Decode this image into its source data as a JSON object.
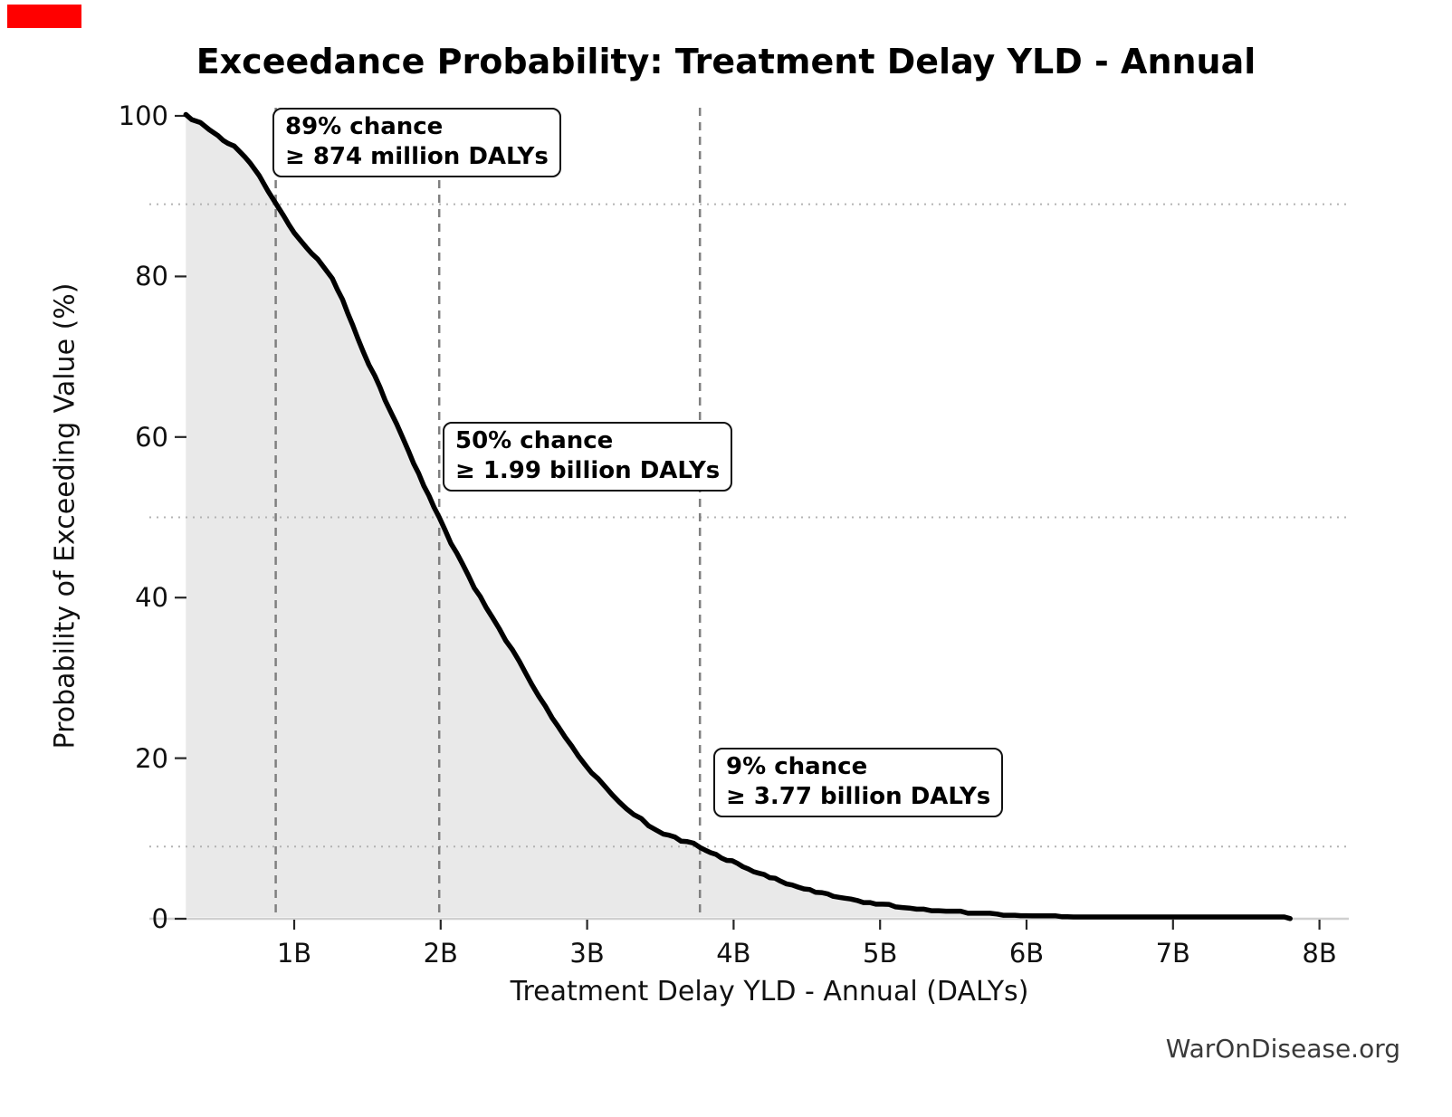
{
  "page": {
    "background": "#ffffff"
  },
  "red_marker": {
    "color": "#ff0000"
  },
  "chart_data": {
    "type": "area",
    "title": "Exceedance Probability: Treatment Delay YLD - Annual",
    "xlabel": "Treatment Delay YLD - Annual (DALYs)",
    "ylabel": "Probability of Exceeding Value (%)",
    "xlim_billions": [
      0,
      8.3
    ],
    "ylim_percent": [
      0,
      100
    ],
    "grid": "reference lines only",
    "legend": "none",
    "x_ticks": [
      {
        "value": 1,
        "label": "1B"
      },
      {
        "value": 2,
        "label": "2B"
      },
      {
        "value": 3,
        "label": "3B"
      },
      {
        "value": 4,
        "label": "4B"
      },
      {
        "value": 5,
        "label": "5B"
      },
      {
        "value": 6,
        "label": "6B"
      },
      {
        "value": 7,
        "label": "7B"
      },
      {
        "value": 8,
        "label": "8B"
      }
    ],
    "y_ticks": [
      {
        "value": 0,
        "label": "0"
      },
      {
        "value": 20,
        "label": "20"
      },
      {
        "value": 40,
        "label": "40"
      },
      {
        "value": 60,
        "label": "60"
      },
      {
        "value": 80,
        "label": "80"
      },
      {
        "value": 100,
        "label": "100"
      }
    ],
    "h_dotted_lines_percent": [
      89,
      50,
      9
    ],
    "v_dashed_lines_billions": [
      0.874,
      1.99,
      3.77
    ],
    "curve_color": "#000000",
    "fill_color": "#e9e9e9",
    "dashed_line_color": "#808080",
    "dotted_line_color": "#b3b3b3",
    "axis_spine_color": "#d0d0d0",
    "tick_color": "#262626",
    "series": [
      {
        "name": "exceedance-probability",
        "x_unit": "billions of DALYs",
        "y_unit": "percent",
        "points": [
          [
            0.26,
            100
          ],
          [
            0.3,
            99.7
          ],
          [
            0.36,
            99.0
          ],
          [
            0.42,
            98.4
          ],
          [
            0.48,
            97.6
          ],
          [
            0.55,
            96.6
          ],
          [
            0.63,
            95.6
          ],
          [
            0.7,
            94.0
          ],
          [
            0.76,
            92.5
          ],
          [
            0.82,
            90.8
          ],
          [
            0.874,
            89.0
          ],
          [
            0.93,
            87.4
          ],
          [
            1.0,
            85.6
          ],
          [
            1.08,
            83.8
          ],
          [
            1.16,
            82.0
          ],
          [
            1.26,
            79.8
          ],
          [
            1.33,
            77.0
          ],
          [
            1.4,
            73.9
          ],
          [
            1.47,
            70.8
          ],
          [
            1.55,
            67.5
          ],
          [
            1.62,
            64.7
          ],
          [
            1.7,
            61.5
          ],
          [
            1.78,
            58.2
          ],
          [
            1.85,
            55.4
          ],
          [
            1.92,
            52.7
          ],
          [
            1.99,
            50.0
          ],
          [
            2.07,
            46.9
          ],
          [
            2.15,
            44.0
          ],
          [
            2.23,
            41.3
          ],
          [
            2.31,
            38.8
          ],
          [
            2.4,
            36.0
          ],
          [
            2.49,
            33.5
          ],
          [
            2.58,
            30.6
          ],
          [
            2.67,
            27.8
          ],
          [
            2.76,
            25.1
          ],
          [
            2.85,
            22.6
          ],
          [
            2.94,
            20.2
          ],
          [
            3.03,
            18.2
          ],
          [
            3.12,
            16.4
          ],
          [
            3.22,
            14.6
          ],
          [
            3.32,
            13.0
          ],
          [
            3.42,
            11.7
          ],
          [
            3.52,
            10.7
          ],
          [
            3.64,
            9.8
          ],
          [
            3.77,
            9.0
          ],
          [
            3.88,
            8.0
          ],
          [
            3.99,
            7.1
          ],
          [
            4.1,
            6.2
          ],
          [
            4.21,
            5.4
          ],
          [
            4.32,
            4.7
          ],
          [
            4.44,
            4.0
          ],
          [
            4.56,
            3.4
          ],
          [
            4.68,
            2.9
          ],
          [
            4.8,
            2.4
          ],
          [
            4.93,
            2.0
          ],
          [
            5.06,
            1.7
          ],
          [
            5.2,
            1.4
          ],
          [
            5.35,
            1.15
          ],
          [
            5.5,
            0.95
          ],
          [
            5.65,
            0.78
          ],
          [
            5.8,
            0.63
          ],
          [
            6.0,
            0.5
          ],
          [
            6.2,
            0.4
          ],
          [
            6.4,
            0.32
          ],
          [
            6.6,
            0.25
          ],
          [
            6.8,
            0.19
          ],
          [
            7.0,
            0.15
          ],
          [
            7.2,
            0.11
          ],
          [
            7.4,
            0.08
          ],
          [
            7.6,
            0.05
          ],
          [
            7.8,
            0.02
          ]
        ]
      }
    ],
    "annotations": [
      {
        "line1": "89% chance",
        "line2": "≥ 874 million DALYs",
        "at_billions": 0.874,
        "at_percent": 89
      },
      {
        "line1": "50% chance",
        "line2": "≥ 1.99 billion DALYs",
        "at_billions": 1.99,
        "at_percent": 50
      },
      {
        "line1": "9% chance",
        "line2": "≥ 3.77 billion DALYs",
        "at_billions": 3.77,
        "at_percent": 9
      }
    ]
  },
  "watermark": {
    "text": "WarOnDisease.org",
    "color": "#3a3a3a"
  }
}
